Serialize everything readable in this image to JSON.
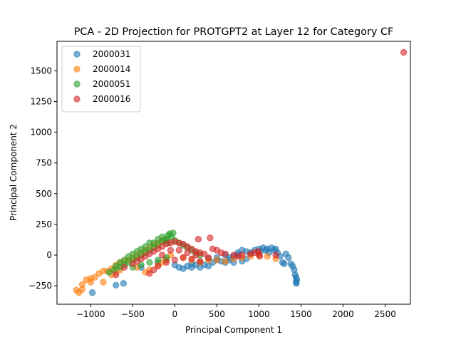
{
  "chart_data": {
    "type": "scatter",
    "title": "PCA - 2D Projection for PROTGPT2 at Layer 12 for Category CF",
    "xlabel": "Principal Component 1",
    "ylabel": "Principal Component 2",
    "xlim": [
      -1400,
      2800
    ],
    "ylim": [
      -400,
      1740
    ],
    "xticks": [
      -1000,
      -500,
      0,
      500,
      1000,
      1500,
      2000,
      2500
    ],
    "yticks": [
      -250,
      0,
      250,
      500,
      750,
      1000,
      1250,
      1500
    ],
    "xtick_labels": [
      "−1000",
      "−500",
      "0",
      "500",
      "1000",
      "1500",
      "2000",
      "2500"
    ],
    "ytick_labels": [
      "−250",
      "0",
      "250",
      "500",
      "750",
      "1000",
      "1250",
      "1500"
    ],
    "grid": false,
    "legend_position": "top-left",
    "marker_alpha": 0.6,
    "series": [
      {
        "name": "2000031",
        "color": "#1f77b4",
        "points": [
          [
            -980,
            -305
          ],
          [
            -700,
            -245
          ],
          [
            -610,
            -230
          ],
          [
            -400,
            -100
          ],
          [
            -200,
            -60
          ],
          [
            -100,
            -40
          ],
          [
            0,
            -80
          ],
          [
            50,
            -100
          ],
          [
            100,
            -110
          ],
          [
            150,
            -90
          ],
          [
            200,
            -70
          ],
          [
            250,
            -80
          ],
          [
            300,
            -100
          ],
          [
            350,
            -80
          ],
          [
            400,
            -90
          ],
          [
            450,
            -60
          ],
          [
            500,
            -40
          ],
          [
            550,
            -50
          ],
          [
            600,
            -60
          ],
          [
            650,
            -40
          ],
          [
            700,
            -10
          ],
          [
            750,
            20
          ],
          [
            800,
            40
          ],
          [
            850,
            30
          ],
          [
            900,
            20
          ],
          [
            950,
            40
          ],
          [
            1000,
            50
          ],
          [
            1020,
            30
          ],
          [
            1050,
            60
          ],
          [
            1080,
            40
          ],
          [
            1100,
            50
          ],
          [
            1120,
            20
          ],
          [
            1150,
            60
          ],
          [
            1180,
            40
          ],
          [
            1200,
            50
          ],
          [
            1220,
            20
          ],
          [
            1250,
            -10
          ],
          [
            1280,
            -60
          ],
          [
            1300,
            -70
          ],
          [
            1320,
            10
          ],
          [
            1350,
            -20
          ],
          [
            1380,
            -70
          ],
          [
            1400,
            -90
          ],
          [
            1420,
            -120
          ],
          [
            1430,
            -160
          ],
          [
            1440,
            -180
          ],
          [
            1450,
            -200
          ],
          [
            1445,
            -230
          ],
          [
            1440,
            -220
          ],
          [
            700,
            -60
          ],
          [
            800,
            -50
          ],
          [
            850,
            -30
          ],
          [
            900,
            10
          ],
          [
            750,
            0
          ],
          [
            650,
            -20
          ],
          [
            600,
            0
          ],
          [
            500,
            -20
          ],
          [
            400,
            -30
          ],
          [
            300,
            -60
          ],
          [
            200,
            -100
          ]
        ]
      },
      {
        "name": "2000014",
        "color": "#ff7f0e",
        "points": [
          [
            -1170,
            -285
          ],
          [
            -1140,
            -305
          ],
          [
            -1100,
            -280
          ],
          [
            -1100,
            -240
          ],
          [
            -1050,
            -200
          ],
          [
            -1000,
            -220
          ],
          [
            -1000,
            -190
          ],
          [
            -950,
            -180
          ],
          [
            -900,
            -150
          ],
          [
            -850,
            -130
          ],
          [
            -850,
            -220
          ],
          [
            -800,
            -130
          ],
          [
            -750,
            -110
          ],
          [
            -700,
            -80
          ],
          [
            -650,
            -60
          ],
          [
            -600,
            -50
          ],
          [
            -550,
            -40
          ],
          [
            -500,
            -20
          ],
          [
            -450,
            0
          ],
          [
            -400,
            20
          ],
          [
            -350,
            40
          ],
          [
            -300,
            60
          ],
          [
            -250,
            80
          ],
          [
            -200,
            100
          ],
          [
            -150,
            120
          ],
          [
            -100,
            130
          ],
          [
            -350,
            -140
          ],
          [
            -300,
            -120
          ],
          [
            -200,
            -80
          ],
          [
            -150,
            -60
          ],
          [
            -100,
            -40
          ],
          [
            -50,
            0
          ],
          [
            100,
            -20
          ],
          [
            200,
            -40
          ],
          [
            300,
            -60
          ],
          [
            400,
            -40
          ],
          [
            500,
            -40
          ],
          [
            600,
            -50
          ],
          [
            700,
            -30
          ],
          [
            800,
            -20
          ],
          [
            900,
            -10
          ],
          [
            1000,
            0
          ],
          [
            1100,
            -10
          ],
          [
            1200,
            -30
          ],
          [
            -650,
            -120
          ],
          [
            -750,
            -160
          ],
          [
            -700,
            -140
          ],
          [
            -450,
            -100
          ]
        ]
      },
      {
        "name": "2000051",
        "color": "#2ca02c",
        "points": [
          [
            -780,
            -140
          ],
          [
            -720,
            -120
          ],
          [
            -650,
            -100
          ],
          [
            -600,
            -80
          ],
          [
            -550,
            -60
          ],
          [
            -500,
            -40
          ],
          [
            -450,
            -20
          ],
          [
            -400,
            0
          ],
          [
            -350,
            20
          ],
          [
            -300,
            40
          ],
          [
            -250,
            60
          ],
          [
            -200,
            80
          ],
          [
            -150,
            110
          ],
          [
            -100,
            130
          ],
          [
            -80,
            160
          ],
          [
            -60,
            175
          ],
          [
            -20,
            180
          ],
          [
            -40,
            150
          ],
          [
            -120,
            120
          ],
          [
            -250,
            100
          ],
          [
            -300,
            100
          ],
          [
            -350,
            70
          ],
          [
            -400,
            50
          ],
          [
            -450,
            30
          ],
          [
            -500,
            10
          ],
          [
            -550,
            -10
          ],
          [
            -600,
            -40
          ],
          [
            -650,
            -60
          ],
          [
            -700,
            -90
          ],
          [
            0,
            120
          ],
          [
            50,
            100
          ],
          [
            100,
            80
          ],
          [
            150,
            60
          ],
          [
            200,
            40
          ],
          [
            250,
            20
          ],
          [
            300,
            0
          ],
          [
            -200,
            -40
          ],
          [
            -100,
            -20
          ],
          [
            -300,
            -60
          ],
          [
            -400,
            -80
          ],
          [
            -500,
            -100
          ],
          [
            -150,
            150
          ],
          [
            -200,
            130
          ],
          [
            -80,
            100
          ]
        ]
      },
      {
        "name": "2000016",
        "color": "#d62728",
        "points": [
          [
            2720,
            1650
          ],
          [
            -700,
            -160
          ],
          [
            -600,
            -100
          ],
          [
            -500,
            -70
          ],
          [
            -450,
            -50
          ],
          [
            -400,
            -30
          ],
          [
            -350,
            -10
          ],
          [
            -300,
            10
          ],
          [
            -250,
            30
          ],
          [
            -200,
            50
          ],
          [
            -150,
            70
          ],
          [
            -100,
            90
          ],
          [
            -50,
            100
          ],
          [
            0,
            110
          ],
          [
            50,
            100
          ],
          [
            100,
            90
          ],
          [
            150,
            70
          ],
          [
            200,
            50
          ],
          [
            250,
            30
          ],
          [
            280,
            130
          ],
          [
            300,
            20
          ],
          [
            350,
            10
          ],
          [
            420,
            140
          ],
          [
            450,
            50
          ],
          [
            500,
            40
          ],
          [
            550,
            20
          ],
          [
            600,
            10
          ],
          [
            700,
            0
          ],
          [
            750,
            -10
          ],
          [
            800,
            0
          ],
          [
            900,
            10
          ],
          [
            950,
            20
          ],
          [
            990,
            30
          ],
          [
            1000,
            10
          ],
          [
            1010,
            -10
          ],
          [
            1200,
            0
          ],
          [
            -300,
            -150
          ],
          [
            -250,
            -120
          ],
          [
            -200,
            -90
          ],
          [
            -100,
            -60
          ],
          [
            0,
            -40
          ],
          [
            100,
            -20
          ],
          [
            200,
            -30
          ],
          [
            300,
            -50
          ],
          [
            400,
            -20
          ],
          [
            -150,
            0
          ],
          [
            -50,
            40
          ],
          [
            50,
            40
          ],
          [
            150,
            20
          ],
          [
            250,
            0
          ]
        ]
      }
    ]
  }
}
